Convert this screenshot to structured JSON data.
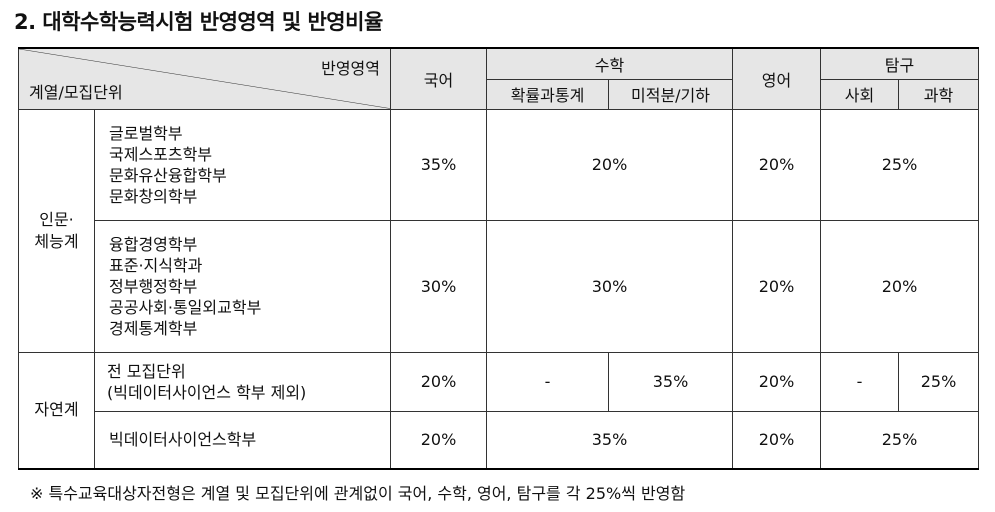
{
  "title": "2. 대학수학능력시험 반영영역 및 반영비율",
  "header": {
    "area_label": "반영영역",
    "unit_label": "계열/모집단위",
    "korean": "국어",
    "math": "수학",
    "math_prob": "확률과통계",
    "math_calc": "미적분/기하",
    "english": "영어",
    "inquiry": "탐구",
    "social": "사회",
    "science": "과학"
  },
  "groups": {
    "humanities": "인문·\n체능계",
    "natural": "자연계"
  },
  "rows": [
    {
      "units": "글로벌학부\n국제스포츠학부\n문화유산융합학부\n문화창의학부",
      "korean": "35%",
      "math": "20%",
      "english": "20%",
      "inquiry": "25%"
    },
    {
      "units": "융합경영학부\n표준·지식학과\n정부행정학부\n공공사회·통일외교학부\n경제통계학부",
      "korean": "30%",
      "math": "30%",
      "english": "20%",
      "inquiry": "20%"
    },
    {
      "units": "전 모집단위\n(빅데이터사이언스 학부 제외)",
      "korean": "20%",
      "math_prob": "-",
      "math_calc": "35%",
      "english": "20%",
      "social": "-",
      "science": "25%"
    },
    {
      "units": "빅데이터사이언스학부",
      "korean": "20%",
      "math": "35%",
      "english": "20%",
      "inquiry": "25%"
    }
  ],
  "note": "※ 특수교육대상자전형은 계열 및 모집단위에 관계없이 국어, 수학, 영어, 탐구를 각 25%씩 반영함"
}
